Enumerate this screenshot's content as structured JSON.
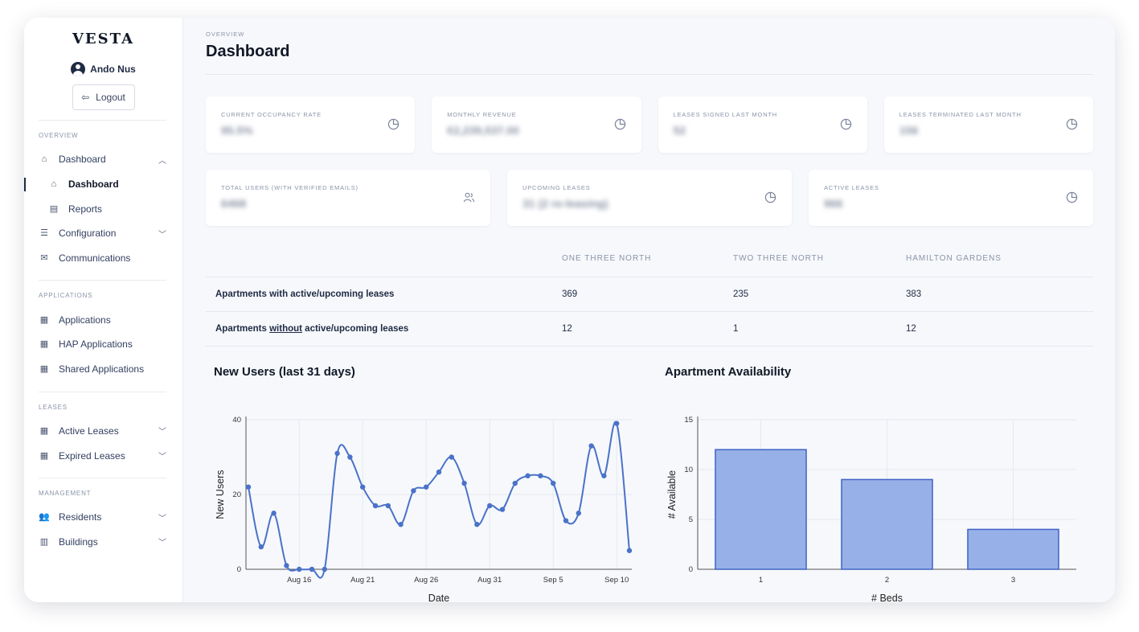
{
  "app": {
    "logo": "VESTA",
    "user_name": "Ando Nus",
    "logout_label": "Logout"
  },
  "sidebar": {
    "sections": [
      {
        "title": "OVERVIEW"
      },
      {
        "title": "APPLICATIONS"
      },
      {
        "title": "LEASES"
      },
      {
        "title": "MANAGEMENT"
      }
    ],
    "items": [
      {
        "label": "Dashboard",
        "icon": "home-icon"
      },
      {
        "label": "Dashboard",
        "icon": "home-icon"
      },
      {
        "label": "Reports",
        "icon": "document-icon"
      },
      {
        "label": "Configuration",
        "icon": "sliders-icon"
      },
      {
        "label": "Communications",
        "icon": "envelope-icon"
      },
      {
        "label": "Applications",
        "icon": "archive-icon"
      },
      {
        "label": "HAP Applications",
        "icon": "archive-icon"
      },
      {
        "label": "Shared Applications",
        "icon": "archive-icon"
      },
      {
        "label": "Active Leases",
        "icon": "archive-icon"
      },
      {
        "label": "Expired Leases",
        "icon": "archive-icon"
      },
      {
        "label": "Residents",
        "icon": "users-icon"
      },
      {
        "label": "Buildings",
        "icon": "building-icon"
      }
    ]
  },
  "header": {
    "breadcrumb": "OVERVIEW",
    "title": "Dashboard"
  },
  "stats": [
    {
      "label": "CURRENT OCCUPANCY RATE",
      "value": "95.5%",
      "icon": "pie-chart-icon"
    },
    {
      "label": "MONTHLY REVENUE",
      "value": "€2,239,537.00",
      "icon": "pie-chart-icon"
    },
    {
      "label": "LEASES SIGNED LAST MONTH",
      "value": "52",
      "icon": "pie-chart-icon"
    },
    {
      "label": "LEASES TERMINATED LAST MONTH",
      "value": "156",
      "icon": "pie-chart-icon"
    },
    {
      "label": "TOTAL USERS (WITH VERIFIED EMAILS)",
      "value": "6468",
      "icon": "users-icon"
    },
    {
      "label": "UPCOMING LEASES",
      "value": "31 (2 re-leasing)",
      "icon": "pie-chart-icon"
    },
    {
      "label": "ACTIVE LEASES",
      "value": "966",
      "icon": "pie-chart-icon"
    }
  ],
  "table": {
    "headers": [
      "ONE THREE NORTH",
      "TWO THREE NORTH",
      "HAMILTON GARDENS"
    ],
    "rows": [
      {
        "label": "Apartments with active/upcoming leases",
        "values": [
          "369",
          "235",
          "383"
        ]
      },
      {
        "label_pre": "Apartments ",
        "label_u": "without",
        "label_post": " active/upcoming leases",
        "values": [
          "12",
          "1",
          "12"
        ]
      }
    ]
  },
  "chart_data": [
    {
      "type": "line",
      "title": "New Users (last 31 days)",
      "xlabel": "Date",
      "ylabel": "New Users",
      "ylim": [
        0,
        40
      ],
      "yticks": [
        0,
        20,
        40
      ],
      "x_start": "Aug 12",
      "xtick_labels": [
        "Aug 16",
        "Aug 21",
        "Aug 26",
        "Aug 31",
        "Sep 5",
        "Sep 10"
      ],
      "xtick_index": [
        4,
        9,
        14,
        19,
        24,
        29
      ],
      "values": [
        22,
        6,
        15,
        1,
        0,
        0,
        0,
        31,
        30,
        22,
        17,
        17,
        12,
        21,
        22,
        26,
        30,
        23,
        12,
        17,
        16,
        23,
        25,
        25,
        23,
        13,
        15,
        33,
        25,
        39,
        5
      ],
      "color": "#4a72c9"
    },
    {
      "type": "bar",
      "title": "Apartment Availability",
      "xlabel": "# Beds",
      "ylabel": "# Available",
      "categories": [
        "1",
        "2",
        "3"
      ],
      "values": [
        12,
        9,
        4
      ],
      "ylim": [
        0,
        15
      ],
      "yticks": [
        0,
        5,
        10,
        15
      ],
      "color": "#98b0e8",
      "edge_color": "#3f62c6"
    }
  ]
}
